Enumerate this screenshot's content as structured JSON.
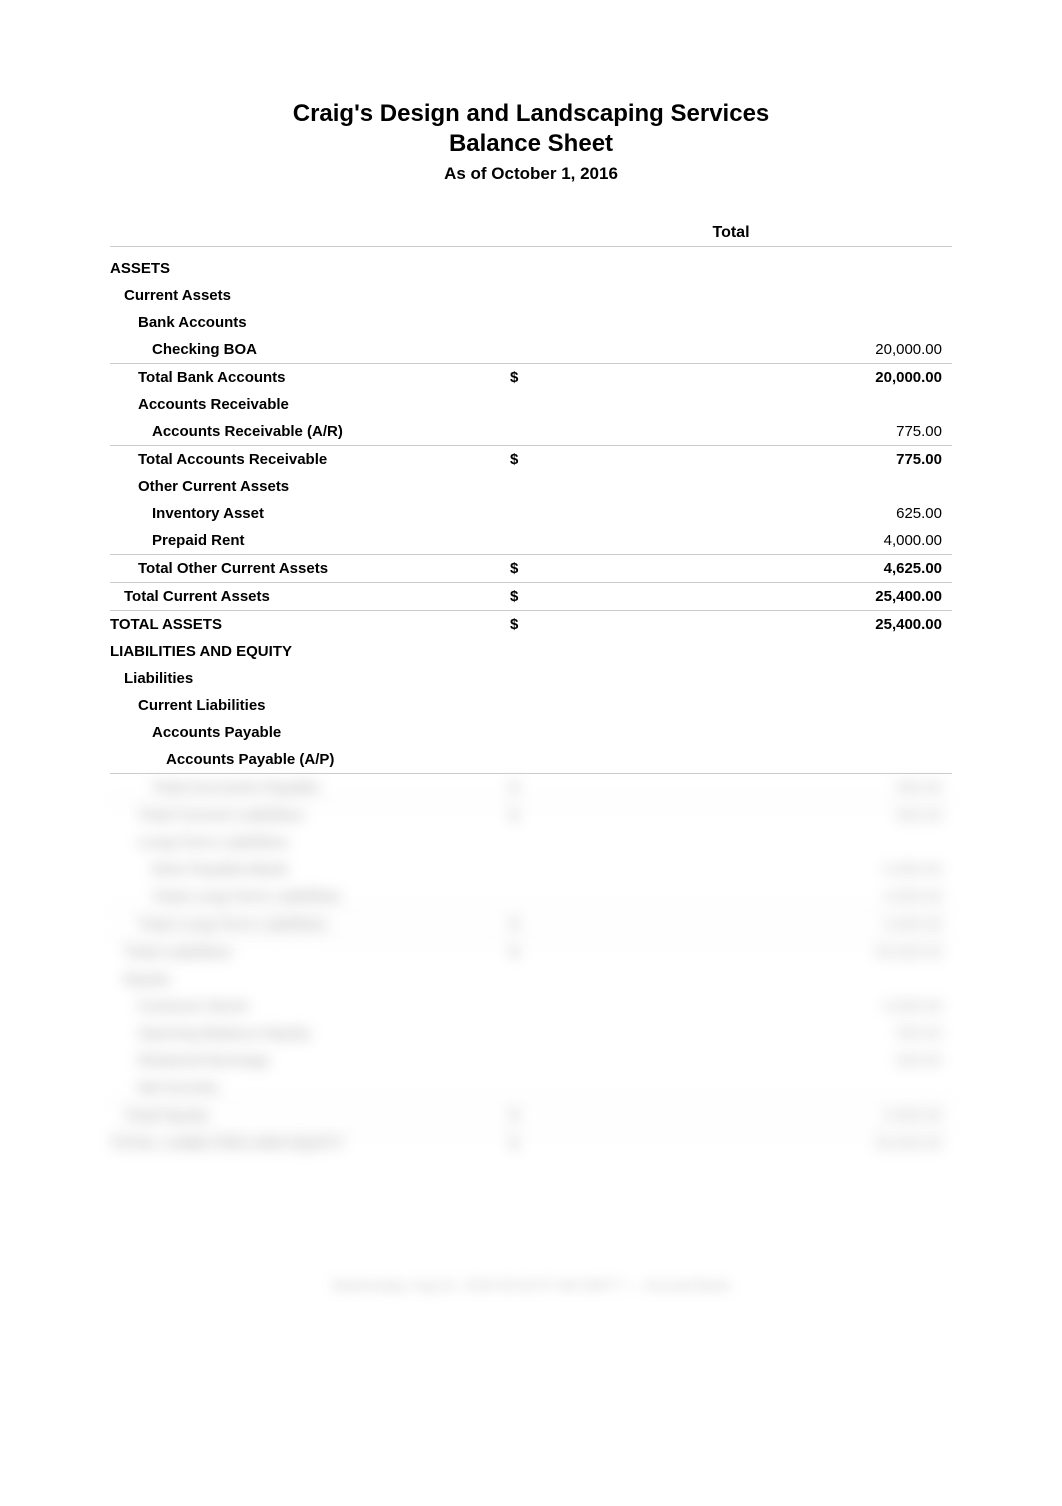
{
  "header": {
    "company_name": "Craig's Design and Landscaping Services",
    "report_title": "Balance Sheet",
    "as_of": "As of October 1, 2016"
  },
  "column_header": "Total",
  "rows": [
    {
      "label": "ASSETS",
      "indent": 0,
      "bold": true,
      "currency": "",
      "value": "",
      "underline": false,
      "blurred": false
    },
    {
      "label": "Current Assets",
      "indent": 1,
      "bold": true,
      "currency": "",
      "value": "",
      "underline": false,
      "blurred": false
    },
    {
      "label": "Bank Accounts",
      "indent": 2,
      "bold": true,
      "currency": "",
      "value": "",
      "underline": false,
      "blurred": false
    },
    {
      "label": "Checking BOA",
      "indent": 3,
      "bold": true,
      "currency": "",
      "value": "20,000.00",
      "underline": true,
      "blurred": false
    },
    {
      "label": "Total Bank Accounts",
      "indent": 2,
      "bold": true,
      "currency": "$",
      "value": "20,000.00",
      "underline": false,
      "blurred": false,
      "value_bold": true
    },
    {
      "label": "Accounts Receivable",
      "indent": 2,
      "bold": true,
      "currency": "",
      "value": "",
      "underline": false,
      "blurred": false
    },
    {
      "label": "Accounts Receivable (A/R)",
      "indent": 3,
      "bold": true,
      "currency": "",
      "value": "775.00",
      "underline": true,
      "blurred": false
    },
    {
      "label": "Total Accounts Receivable",
      "indent": 2,
      "bold": true,
      "currency": "$",
      "value": "775.00",
      "underline": false,
      "blurred": false,
      "value_bold": true
    },
    {
      "label": "Other Current Assets",
      "indent": 2,
      "bold": true,
      "currency": "",
      "value": "",
      "underline": false,
      "blurred": false
    },
    {
      "label": "Inventory Asset",
      "indent": 3,
      "bold": true,
      "currency": "",
      "value": "625.00",
      "underline": false,
      "blurred": false
    },
    {
      "label": "Prepaid Rent",
      "indent": 3,
      "bold": true,
      "currency": "",
      "value": "4,000.00",
      "underline": true,
      "blurred": false
    },
    {
      "label": "Total Other Current Assets",
      "indent": 2,
      "bold": true,
      "currency": "$",
      "value": "4,625.00",
      "underline": true,
      "blurred": false,
      "value_bold": true
    },
    {
      "label": "Total Current Assets",
      "indent": 1,
      "bold": true,
      "currency": "$",
      "value": "25,400.00",
      "underline": true,
      "blurred": false,
      "value_bold": true
    },
    {
      "label": "TOTAL ASSETS",
      "indent": 0,
      "bold": true,
      "currency": "$",
      "value": "25,400.00",
      "underline": false,
      "blurred": false,
      "value_bold": true
    },
    {
      "label": "LIABILITIES AND EQUITY",
      "indent": 0,
      "bold": true,
      "currency": "",
      "value": "",
      "underline": false,
      "blurred": false
    },
    {
      "label": "Liabilities",
      "indent": 1,
      "bold": true,
      "currency": "",
      "value": "",
      "underline": false,
      "blurred": false
    },
    {
      "label": "Current Liabilities",
      "indent": 2,
      "bold": true,
      "currency": "",
      "value": "",
      "underline": false,
      "blurred": false
    },
    {
      "label": "Accounts Payable",
      "indent": 3,
      "bold": true,
      "currency": "",
      "value": "",
      "underline": false,
      "blurred": false
    },
    {
      "label": "Accounts Payable (A/P)",
      "indent": 4,
      "bold": true,
      "currency": "",
      "value": "",
      "underline": true,
      "blurred": false
    },
    {
      "label": "Total Accounts Payable",
      "indent": 3,
      "bold": true,
      "currency": "$",
      "value": "000.00",
      "underline": true,
      "blurred": true
    },
    {
      "label": "Total Current Liabilities",
      "indent": 2,
      "bold": true,
      "currency": "$",
      "value": "000.00",
      "underline": false,
      "blurred": true
    },
    {
      "label": "Long-Term Liabilities",
      "indent": 2,
      "bold": true,
      "currency": "",
      "value": "",
      "underline": false,
      "blurred": true
    },
    {
      "label": "Note Payable-Bank",
      "indent": 3,
      "bold": true,
      "currency": "",
      "value": "0,000.00",
      "underline": false,
      "blurred": true
    },
    {
      "label": "Total Long-Term Liabilities",
      "indent": 3,
      "bold": true,
      "currency": "",
      "value": "0,000.00",
      "underline": true,
      "blurred": true
    },
    {
      "label": "Total Long-Term Liabilities",
      "indent": 2,
      "bold": true,
      "currency": "$",
      "value": "0,000.00",
      "underline": true,
      "blurred": true
    },
    {
      "label": "Total Liabilities",
      "indent": 1,
      "bold": true,
      "currency": "$",
      "value": "00,000.00",
      "underline": false,
      "blurred": true
    },
    {
      "label": "Equity",
      "indent": 1,
      "bold": true,
      "currency": "",
      "value": "",
      "underline": false,
      "blurred": true
    },
    {
      "label": "Common Stock",
      "indent": 2,
      "bold": true,
      "currency": "",
      "value": "0,000.00",
      "underline": false,
      "blurred": true
    },
    {
      "label": "Opening Balance Equity",
      "indent": 2,
      "bold": true,
      "currency": "",
      "value": "000.00",
      "underline": false,
      "blurred": true
    },
    {
      "label": "Retained Earnings",
      "indent": 2,
      "bold": true,
      "currency": "",
      "value": "000.00",
      "underline": false,
      "blurred": true
    },
    {
      "label": "Net Income",
      "indent": 2,
      "bold": true,
      "currency": "",
      "value": "",
      "underline": true,
      "blurred": true
    },
    {
      "label": "Total Equity",
      "indent": 1,
      "bold": true,
      "currency": "$",
      "value": "0,000.00",
      "underline": true,
      "blurred": true
    },
    {
      "label": "TOTAL LIABILITIES AND EQUITY",
      "indent": 0,
      "bold": true,
      "currency": "$",
      "value": "00,000.00",
      "underline": false,
      "blurred": true
    }
  ],
  "footer": "Wednesday, Aug 01, 2018 09:32:07 AM GMT-7 — Accrual Basis",
  "colors": {
    "text": "#000000",
    "background": "#ffffff",
    "border": "#cccccc",
    "blur_text": "#888888"
  },
  "typography": {
    "font_family": "Arial, Helvetica, sans-serif",
    "header_fontsize": 24,
    "asof_fontsize": 17,
    "row_fontsize": 15,
    "colheader_fontsize": 16
  }
}
